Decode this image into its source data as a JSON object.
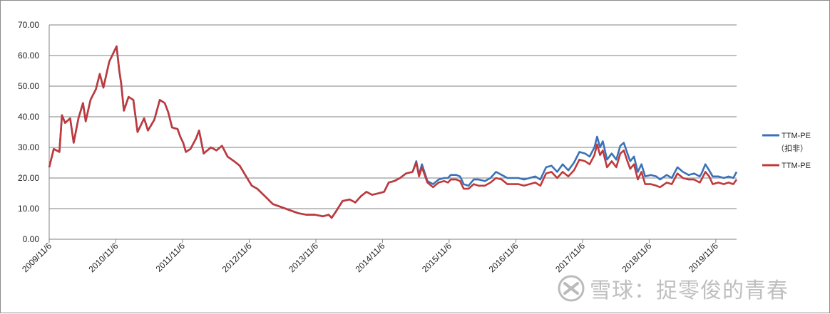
{
  "chart_data": {
    "type": "line",
    "title": "",
    "xlabel": "",
    "ylabel": "",
    "ylim": [
      0,
      70
    ],
    "y_ticks": [
      "0.00",
      "10.00",
      "20.00",
      "30.00",
      "40.00",
      "50.00",
      "60.00",
      "70.00"
    ],
    "x_ticks": [
      "2009/11/6",
      "2010/11/6",
      "2011/11/6",
      "2012/11/6",
      "2013/11/6",
      "2014/11/6",
      "2015/11/6",
      "2016/11/6",
      "2017/11/6",
      "2018/11/6",
      "2019/11/6"
    ],
    "xlim": [
      "2009/11/6",
      "2020/02/28"
    ],
    "grid": "horizontal",
    "legend_position": "right",
    "series": [
      {
        "name": "TTM-PE（扣非）",
        "color": "#3a72b8",
        "points": [
          [
            "2009/11/6",
            23.5
          ],
          [
            "2009/12/1",
            29.5
          ],
          [
            "2010/1/1",
            28.5
          ],
          [
            "2010/1/15",
            40.5
          ],
          [
            "2010/2/1",
            38.0
          ],
          [
            "2010/3/1",
            39.5
          ],
          [
            "2010/3/20",
            31.5
          ],
          [
            "2010/4/15",
            39.5
          ],
          [
            "2010/5/10",
            44.5
          ],
          [
            "2010/5/25",
            38.5
          ],
          [
            "2010/6/20",
            45.5
          ],
          [
            "2010/7/20",
            49.0
          ],
          [
            "2010/8/10",
            54.0
          ],
          [
            "2010/8/30",
            49.5
          ],
          [
            "2010/10/1",
            58.0
          ],
          [
            "2010/11/10",
            63.0
          ],
          [
            "2010/11/25",
            55.0
          ],
          [
            "2010/12/5",
            51.0
          ],
          [
            "2010/12/20",
            42.0
          ],
          [
            "2011/1/15",
            46.5
          ],
          [
            "2011/2/10",
            45.5
          ],
          [
            "2011/3/5",
            35.0
          ],
          [
            "2011/3/25",
            37.5
          ],
          [
            "2011/4/10",
            39.5
          ],
          [
            "2011/5/1",
            35.5
          ],
          [
            "2011/6/5",
            39.0
          ],
          [
            "2011/7/5",
            45.5
          ],
          [
            "2011/8/1",
            44.5
          ],
          [
            "2011/8/20",
            41.5
          ],
          [
            "2011/9/10",
            36.5
          ],
          [
            "2011/10/10",
            36.0
          ],
          [
            "2011/10/25",
            33.5
          ],
          [
            "2011/11/10",
            31.5
          ],
          [
            "2011/11/25",
            28.5
          ],
          [
            "2011/12/20",
            29.5
          ],
          [
            "2012/1/20",
            33.0
          ],
          [
            "2012/2/5",
            35.5
          ],
          [
            "2012/3/1",
            28.0
          ],
          [
            "2012/4/10",
            30.0
          ],
          [
            "2012/5/10",
            29.0
          ],
          [
            "2012/6/10",
            30.5
          ],
          [
            "2012/7/10",
            27.0
          ],
          [
            "2012/8/15",
            25.5
          ],
          [
            "2012/9/15",
            24.0
          ],
          [
            "2012/10/20",
            20.5
          ],
          [
            "2012/11/20",
            17.5
          ],
          [
            "2012/12/20",
            16.5
          ],
          [
            "2013/2/1",
            14.0
          ],
          [
            "2013/3/15",
            11.5
          ],
          [
            "2013/5/1",
            10.5
          ],
          [
            "2013/6/15",
            9.5
          ],
          [
            "2013/8/1",
            8.5
          ],
          [
            "2013/9/15",
            8.0
          ],
          [
            "2013/11/1",
            8.0
          ],
          [
            "2013/12/15",
            7.5
          ],
          [
            "2014/1/15",
            8.0
          ],
          [
            "2014/2/1",
            7.0
          ],
          [
            "2014/3/1",
            9.5
          ],
          [
            "2014/4/1",
            12.5
          ],
          [
            "2014/5/10",
            13.0
          ],
          [
            "2014/6/10",
            12.0
          ],
          [
            "2014/7/10",
            14.0
          ],
          [
            "2014/8/10",
            15.5
          ],
          [
            "2014/9/10",
            14.5
          ],
          [
            "2014/10/15",
            15.0
          ],
          [
            "2014/11/15",
            15.5
          ],
          [
            "2014/12/10",
            18.5
          ],
          [
            "2015/1/10",
            19.0
          ],
          [
            "2015/2/10",
            20.0
          ],
          [
            "2015/3/15",
            21.5
          ],
          [
            "2015/4/20",
            22.0
          ],
          [
            "2015/5/10",
            25.5
          ],
          [
            "2015/5/25",
            21.0
          ],
          [
            "2015/6/10",
            24.5
          ],
          [
            "2015/7/10",
            19.0
          ],
          [
            "2015/8/10",
            18.0
          ],
          [
            "2015/9/10",
            19.5
          ],
          [
            "2015/10/10",
            20.0
          ],
          [
            "2015/10/31",
            20.0
          ],
          [
            "2015/11/15",
            21.0
          ],
          [
            "2015/12/15",
            21.0
          ],
          [
            "2016/1/5",
            20.5
          ],
          [
            "2016/1/25",
            18.0
          ],
          [
            "2016/2/20",
            17.5
          ],
          [
            "2016/3/20",
            19.5
          ],
          [
            "2016/4/15",
            19.5
          ],
          [
            "2016/5/20",
            19.0
          ],
          [
            "2016/6/20",
            20.0
          ],
          [
            "2016/7/20",
            22.0
          ],
          [
            "2016/8/20",
            21.0
          ],
          [
            "2016/9/20",
            20.0
          ],
          [
            "2016/10/20",
            20.0
          ],
          [
            "2016/11/20",
            20.0
          ],
          [
            "2016/12/20",
            19.5
          ],
          [
            "2017/1/20",
            20.0
          ],
          [
            "2017/2/20",
            20.5
          ],
          [
            "2017/3/20",
            19.5
          ],
          [
            "2017/4/20",
            23.5
          ],
          [
            "2017/5/20",
            24.0
          ],
          [
            "2017/6/20",
            22.0
          ],
          [
            "2017/7/20",
            24.5
          ],
          [
            "2017/8/20",
            22.5
          ],
          [
            "2017/9/20",
            25.0
          ],
          [
            "2017/10/20",
            28.5
          ],
          [
            "2017/11/20",
            28.0
          ],
          [
            "2017/12/15",
            27.0
          ],
          [
            "2018/1/10",
            30.0
          ],
          [
            "2018/1/25",
            33.5
          ],
          [
            "2018/2/10",
            30.0
          ],
          [
            "2018/2/25",
            32.0
          ],
          [
            "2018/3/20",
            26.0
          ],
          [
            "2018/4/15",
            28.0
          ],
          [
            "2018/5/10",
            26.0
          ],
          [
            "2018/6/1",
            30.5
          ],
          [
            "2018/6/20",
            31.5
          ],
          [
            "2018/7/10",
            28.0
          ],
          [
            "2018/7/25",
            25.5
          ],
          [
            "2018/8/15",
            27.0
          ],
          [
            "2018/9/5",
            22.0
          ],
          [
            "2018/9/25",
            24.5
          ],
          [
            "2018/10/15",
            20.5
          ],
          [
            "2018/11/15",
            21.0
          ],
          [
            "2018/12/15",
            20.5
          ],
          [
            "2019/1/5",
            19.5
          ],
          [
            "2019/2/10",
            21.0
          ],
          [
            "2019/3/10",
            20.0
          ],
          [
            "2019/4/10",
            23.5
          ],
          [
            "2019/5/10",
            22.0
          ],
          [
            "2019/6/10",
            21.0
          ],
          [
            "2019/7/10",
            21.5
          ],
          [
            "2019/8/10",
            20.5
          ],
          [
            "2019/8/20",
            21.5
          ],
          [
            "2019/9/10",
            24.5
          ],
          [
            "2019/10/1",
            22.5
          ],
          [
            "2019/10/20",
            20.5
          ],
          [
            "2019/11/20",
            20.5
          ],
          [
            "2019/12/20",
            20.0
          ],
          [
            "2020/1/15",
            20.5
          ],
          [
            "2020/2/10",
            20.0
          ],
          [
            "2020/2/28",
            22.0
          ]
        ]
      },
      {
        "name": "TTM-PE",
        "color": "#c0393b",
        "points": [
          [
            "2009/11/6",
            23.5
          ],
          [
            "2009/12/1",
            29.5
          ],
          [
            "2010/1/1",
            28.5
          ],
          [
            "2010/1/15",
            40.5
          ],
          [
            "2010/2/1",
            38.0
          ],
          [
            "2010/3/1",
            39.5
          ],
          [
            "2010/3/20",
            31.5
          ],
          [
            "2010/4/15",
            39.5
          ],
          [
            "2010/5/10",
            44.5
          ],
          [
            "2010/5/25",
            38.5
          ],
          [
            "2010/6/20",
            45.5
          ],
          [
            "2010/7/20",
            49.0
          ],
          [
            "2010/8/10",
            54.0
          ],
          [
            "2010/8/30",
            49.5
          ],
          [
            "2010/10/1",
            58.0
          ],
          [
            "2010/11/10",
            63.0
          ],
          [
            "2010/11/25",
            55.0
          ],
          [
            "2010/12/5",
            51.0
          ],
          [
            "2010/12/20",
            42.0
          ],
          [
            "2011/1/15",
            46.5
          ],
          [
            "2011/2/10",
            45.5
          ],
          [
            "2011/3/5",
            35.0
          ],
          [
            "2011/3/25",
            37.5
          ],
          [
            "2011/4/10",
            39.5
          ],
          [
            "2011/5/1",
            35.5
          ],
          [
            "2011/6/5",
            39.0
          ],
          [
            "2011/7/5",
            45.5
          ],
          [
            "2011/8/1",
            44.5
          ],
          [
            "2011/8/20",
            41.5
          ],
          [
            "2011/9/10",
            36.5
          ],
          [
            "2011/10/10",
            36.0
          ],
          [
            "2011/10/25",
            33.5
          ],
          [
            "2011/11/10",
            31.5
          ],
          [
            "2011/11/25",
            28.5
          ],
          [
            "2011/12/20",
            29.5
          ],
          [
            "2012/1/20",
            33.0
          ],
          [
            "2012/2/5",
            35.5
          ],
          [
            "2012/3/1",
            28.0
          ],
          [
            "2012/4/10",
            30.0
          ],
          [
            "2012/5/10",
            29.0
          ],
          [
            "2012/6/10",
            30.5
          ],
          [
            "2012/7/10",
            27.0
          ],
          [
            "2012/8/15",
            25.5
          ],
          [
            "2012/9/15",
            24.0
          ],
          [
            "2012/10/20",
            20.5
          ],
          [
            "2012/11/20",
            17.5
          ],
          [
            "2012/12/20",
            16.5
          ],
          [
            "2013/2/1",
            14.0
          ],
          [
            "2013/3/15",
            11.5
          ],
          [
            "2013/5/1",
            10.5
          ],
          [
            "2013/6/15",
            9.5
          ],
          [
            "2013/8/1",
            8.5
          ],
          [
            "2013/9/15",
            8.0
          ],
          [
            "2013/11/1",
            8.0
          ],
          [
            "2013/12/15",
            7.5
          ],
          [
            "2014/1/15",
            8.0
          ],
          [
            "2014/2/1",
            7.0
          ],
          [
            "2014/3/1",
            9.5
          ],
          [
            "2014/4/1",
            12.5
          ],
          [
            "2014/5/10",
            13.0
          ],
          [
            "2014/6/10",
            12.0
          ],
          [
            "2014/7/10",
            14.0
          ],
          [
            "2014/8/10",
            15.5
          ],
          [
            "2014/9/10",
            14.5
          ],
          [
            "2014/10/15",
            15.0
          ],
          [
            "2014/11/15",
            15.5
          ],
          [
            "2014/12/10",
            18.5
          ],
          [
            "2015/1/10",
            19.0
          ],
          [
            "2015/2/10",
            20.0
          ],
          [
            "2015/3/15",
            21.5
          ],
          [
            "2015/4/20",
            22.0
          ],
          [
            "2015/5/10",
            25.0
          ],
          [
            "2015/5/25",
            20.5
          ],
          [
            "2015/6/10",
            23.5
          ],
          [
            "2015/7/10",
            18.5
          ],
          [
            "2015/8/10",
            17.0
          ],
          [
            "2015/9/10",
            18.5
          ],
          [
            "2015/10/10",
            19.0
          ],
          [
            "2015/10/31",
            18.5
          ],
          [
            "2015/11/15",
            19.5
          ],
          [
            "2015/12/15",
            19.5
          ],
          [
            "2016/1/5",
            19.0
          ],
          [
            "2016/1/25",
            16.5
          ],
          [
            "2016/2/20",
            16.5
          ],
          [
            "2016/3/20",
            18.0
          ],
          [
            "2016/4/15",
            17.5
          ],
          [
            "2016/5/20",
            17.5
          ],
          [
            "2016/6/20",
            18.5
          ],
          [
            "2016/7/20",
            20.0
          ],
          [
            "2016/8/20",
            19.5
          ],
          [
            "2016/9/20",
            18.0
          ],
          [
            "2016/10/20",
            18.0
          ],
          [
            "2016/11/20",
            18.0
          ],
          [
            "2016/12/20",
            17.5
          ],
          [
            "2017/1/20",
            18.0
          ],
          [
            "2017/2/20",
            18.5
          ],
          [
            "2017/3/20",
            17.5
          ],
          [
            "2017/4/20",
            21.5
          ],
          [
            "2017/5/20",
            22.0
          ],
          [
            "2017/6/20",
            20.0
          ],
          [
            "2017/7/20",
            22.0
          ],
          [
            "2017/8/20",
            20.5
          ],
          [
            "2017/9/20",
            22.5
          ],
          [
            "2017/10/20",
            26.0
          ],
          [
            "2017/11/20",
            25.5
          ],
          [
            "2017/12/15",
            24.5
          ],
          [
            "2018/1/10",
            27.5
          ],
          [
            "2018/1/25",
            31.0
          ],
          [
            "2018/2/10",
            27.5
          ],
          [
            "2018/2/25",
            29.0
          ],
          [
            "2018/3/20",
            23.5
          ],
          [
            "2018/4/15",
            25.5
          ],
          [
            "2018/5/10",
            23.5
          ],
          [
            "2018/6/1",
            28.0
          ],
          [
            "2018/6/20",
            29.0
          ],
          [
            "2018/7/10",
            25.5
          ],
          [
            "2018/7/25",
            23.0
          ],
          [
            "2018/8/15",
            24.5
          ],
          [
            "2018/9/5",
            19.5
          ],
          [
            "2018/9/25",
            22.0
          ],
          [
            "2018/10/15",
            18.0
          ],
          [
            "2018/11/15",
            18.0
          ],
          [
            "2018/12/15",
            17.5
          ],
          [
            "2019/1/5",
            17.0
          ],
          [
            "2019/2/10",
            18.5
          ],
          [
            "2019/3/10",
            18.0
          ],
          [
            "2019/4/10",
            21.5
          ],
          [
            "2019/5/10",
            20.0
          ],
          [
            "2019/6/10",
            19.5
          ],
          [
            "2019/7/10",
            19.5
          ],
          [
            "2019/8/10",
            18.5
          ],
          [
            "2019/8/20",
            19.5
          ],
          [
            "2019/9/10",
            22.0
          ],
          [
            "2019/10/1",
            20.5
          ],
          [
            "2019/10/20",
            18.0
          ],
          [
            "2019/11/20",
            18.5
          ],
          [
            "2019/12/20",
            18.0
          ],
          [
            "2020/1/15",
            18.5
          ],
          [
            "2020/2/10",
            18.0
          ],
          [
            "2020/2/28",
            19.5
          ]
        ]
      }
    ]
  },
  "legend": {
    "blue_line1": "TTM-PE",
    "blue_line2": "（扣非）",
    "red": "TTM-PE"
  },
  "watermark": {
    "text": "雪球：捉零俊的青春",
    "icon": "snowball-logo-icon"
  }
}
